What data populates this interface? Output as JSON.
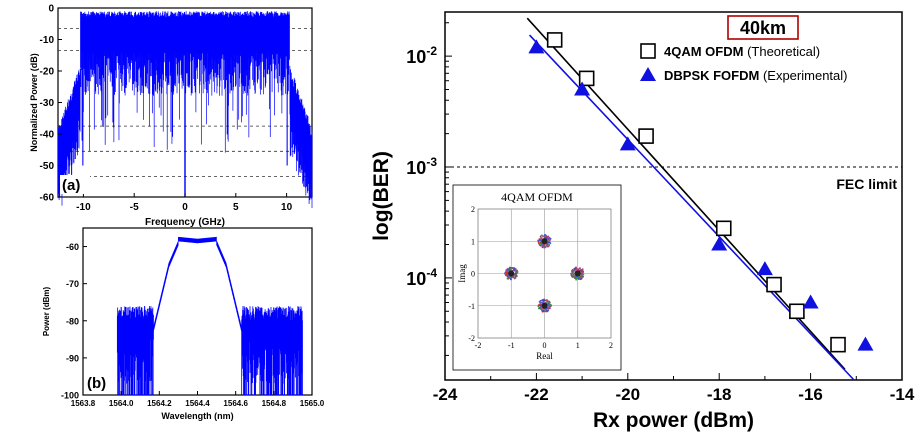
{
  "chart_data": [
    {
      "id": "a",
      "type": "line",
      "panel_label": "(a)",
      "xlabel": "Frequency (GHz)",
      "ylabel": "Normalized Power (dB)",
      "xlim": [
        -12.5,
        12.5
      ],
      "ylim": [
        -60,
        0
      ],
      "xticks": [
        -10,
        -5,
        0,
        5,
        10
      ],
      "yticks": [
        0,
        -10,
        -20,
        -30,
        -40,
        -50,
        -60
      ],
      "dashed_gridlines_y": [
        -6.5,
        -13.5,
        -37.5,
        -45.5,
        -53.5
      ],
      "color": "#0000ff",
      "description_points": {
        "x": [
          -12.5,
          -11.0,
          -10.2,
          -10.0,
          -5,
          -0.3,
          0,
          0.3,
          5,
          10.0,
          10.2,
          11.0,
          12.5
        ],
        "y": [
          -40,
          -25,
          -18,
          -5,
          -3,
          -4,
          -60,
          -4,
          -3,
          -5,
          -18,
          -25,
          -40
        ]
      }
    },
    {
      "id": "b",
      "type": "line",
      "panel_label": "(b)",
      "xlabel": "Wavelength (nm)",
      "ylabel": "Power (dBm)",
      "xlim": [
        1563.8,
        1565.0
      ],
      "ylim": [
        -100,
        -55
      ],
      "xticks": [
        "1563.8",
        "1564.0",
        "1564.2",
        "1564.4",
        "1564.6",
        "1564.8",
        "1565.0"
      ],
      "yticks": [
        -60,
        -70,
        -80,
        -90,
        -100
      ],
      "color": "#0000ff",
      "series": [
        {
          "x": [
            1564.18,
            1564.25,
            1564.3,
            1564.4,
            1564.5,
            1564.55,
            1564.62
          ],
          "y": [
            -80,
            -65,
            -59,
            -58,
            -59,
            -65,
            -80
          ]
        }
      ]
    },
    {
      "id": "main",
      "type": "scatter",
      "xlabel": "Rx power (dBm)",
      "ylabel": "log(BER)",
      "xlim": [
        -24,
        -14
      ],
      "ylim": [
        1.2e-05,
        0.025
      ],
      "y_scale": "log",
      "xticks": [
        -24,
        -22,
        -20,
        -18,
        -16,
        -14
      ],
      "yticks": [
        {
          "value": 0.01,
          "label": "10",
          "exp": "-2"
        },
        {
          "value": 0.001,
          "label": "10",
          "exp": "-3"
        },
        {
          "value": 0.0001,
          "label": "10",
          "exp": "-4"
        }
      ],
      "badge": "40km",
      "fec": {
        "label": "FEC limit",
        "y": 0.001
      },
      "legend_position": "top-right",
      "series": [
        {
          "name": "4QAM OFDM",
          "note": "(Theoretical)",
          "marker": "square",
          "color": "#000000",
          "x": [
            -21.6,
            -20.9,
            -19.6,
            -17.9,
            -16.8,
            -16.3,
            -15.4
          ],
          "y": [
            0.014,
            0.0063,
            0.0019,
            0.00028,
            8.7e-05,
            5e-05,
            2.5e-05
          ],
          "fit": {
            "x": [
              -22.2,
              -15.25
            ],
            "y": [
              0.022,
              1.5e-05
            ]
          }
        },
        {
          "name": "DBPSK FOFDM",
          "note": "(Experimental)",
          "marker": "triangle",
          "color": "#1010e0",
          "x": [
            -22.0,
            -21.0,
            -20.0,
            -18.0,
            -17.0,
            -16.0,
            -14.8
          ],
          "y": [
            0.012,
            0.005,
            0.0016,
            0.0002,
            0.00012,
            6e-05,
            2.5e-05
          ],
          "fit": {
            "x": [
              -22.15,
              -15.05
            ],
            "y": [
              0.0155,
              1.2e-05
            ]
          }
        }
      ],
      "inset": {
        "title": "4QAM OFDM",
        "xlabel": "Real",
        "ylabel": "Imag",
        "xticks": [
          -2,
          -1,
          0,
          1,
          2
        ],
        "yticks": [
          2,
          1,
          0,
          -1,
          -2
        ],
        "clusters": [
          {
            "x": -1,
            "y": 0
          },
          {
            "x": 0,
            "y": 1
          },
          {
            "x": 1,
            "y": 0
          },
          {
            "x": 0,
            "y": -1
          }
        ],
        "colors": [
          "#d03030",
          "#3050d0",
          "#30a040",
          "#b040b0",
          "#606060"
        ]
      }
    }
  ]
}
